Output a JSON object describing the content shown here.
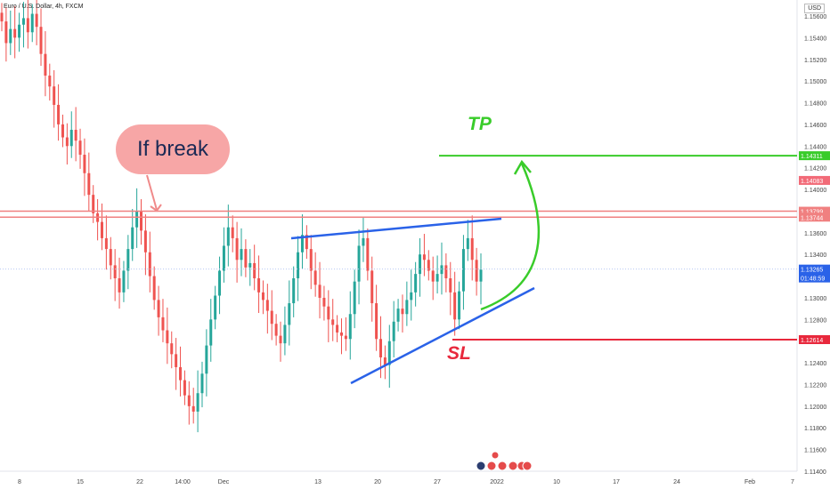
{
  "header": {
    "symbol_title": "Euro / U.S. Dollar, 4h, FXCM",
    "currency": "USD"
  },
  "annotations": {
    "bubble_text": "If break",
    "tp_text": "TP",
    "sl_text": "SL"
  },
  "colors": {
    "bull": "#26a69a",
    "bear": "#ef5350",
    "resistance": "#f08080",
    "triangle": "#2a62e8",
    "tp": "#39cc2a",
    "sl": "#e8283c",
    "current": "#2a62e8"
  },
  "chart_data": {
    "type": "candlestick",
    "timeframe": "4h",
    "ylim": [
      1.1142,
      1.1566
    ],
    "y_ticks": [
      "1.15600",
      "1.15400",
      "1.15200",
      "1.15000",
      "1.14800",
      "1.14600",
      "1.14400",
      "1.14200",
      "1.14000",
      "1.13600",
      "1.13400",
      "1.13000",
      "1.12800",
      "1.12400",
      "1.12200",
      "1.12000",
      "1.11800",
      "1.11600",
      "1.11400"
    ],
    "x_ticks": [
      "8",
      "15",
      "22",
      "14:00",
      "Dec",
      "13",
      "20",
      "27",
      "2022",
      "10",
      "17",
      "24",
      "Feb",
      "7"
    ],
    "series_close": [
      1.1555,
      1.1535,
      1.1548,
      1.154,
      1.1552,
      1.1558,
      1.1545,
      1.1562,
      1.155,
      1.1525,
      1.1505,
      1.1495,
      1.1478,
      1.146,
      1.1448,
      1.144,
      1.1455,
      1.1445,
      1.1432,
      1.1415,
      1.1395,
      1.1378,
      1.137,
      1.1355,
      1.1345,
      1.133,
      1.1318,
      1.1305,
      1.1325,
      1.1345,
      1.1365,
      1.138,
      1.1362,
      1.1342,
      1.132,
      1.1298,
      1.1282,
      1.127,
      1.1258,
      1.1248,
      1.1236,
      1.1224,
      1.121,
      1.12,
      1.1195,
      1.1212,
      1.123,
      1.1256,
      1.128,
      1.1302,
      1.1325,
      1.1348,
      1.1365,
      1.1355,
      1.1335,
      1.1345,
      1.1328,
      1.1332,
      1.1318,
      1.1305,
      1.1298,
      1.1288,
      1.1276,
      1.1265,
      1.1258,
      1.1275,
      1.1295,
      1.1318,
      1.1342,
      1.1358,
      1.1345,
      1.1325,
      1.1312,
      1.13,
      1.1292,
      1.128,
      1.1275,
      1.1268,
      1.1265,
      1.1262,
      1.1285,
      1.1315,
      1.1348,
      1.1355,
      1.1325,
      1.1295,
      1.1262,
      1.1245,
      1.1238,
      1.126,
      1.1278,
      1.129,
      1.1285,
      1.1298,
      1.1305,
      1.1322,
      1.134,
      1.1335,
      1.1325,
      1.1315,
      1.1322,
      1.133,
      1.1318,
      1.1305,
      1.128,
      1.1306,
      1.1345,
      1.1355,
      1.1335,
      1.1315,
      1.1326
    ],
    "current_price": 1.13265,
    "countdown": "01:48:59",
    "levels": [
      {
        "label": "1.14311",
        "price": 1.14311,
        "kind": "tp"
      },
      {
        "label": "1.14083",
        "price": 1.14083,
        "kind": "mark"
      },
      {
        "label": "1.13799",
        "price": 1.13799,
        "kind": "resistance"
      },
      {
        "label": "1.13744",
        "price": 1.13744,
        "kind": "resistance"
      },
      {
        "label": "1.13265",
        "price": 1.13265,
        "kind": "current"
      },
      {
        "label": "1.12614",
        "price": 1.12614,
        "kind": "sl"
      }
    ]
  }
}
